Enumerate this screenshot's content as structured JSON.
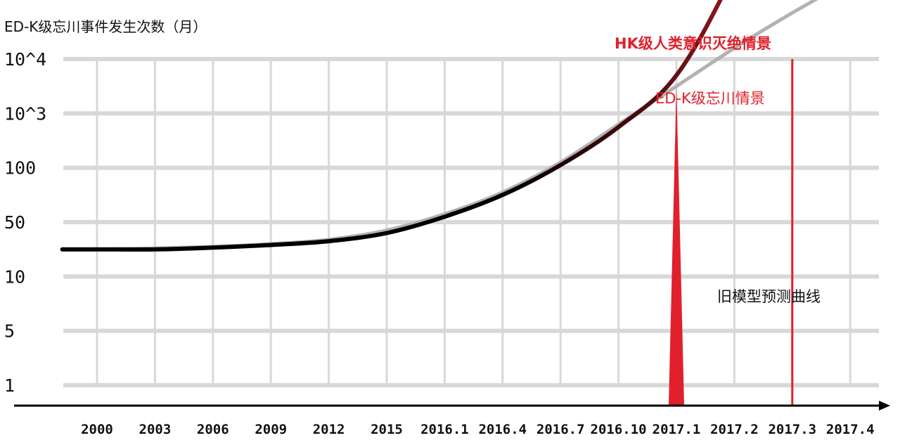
{
  "chart_data": {
    "type": "line",
    "ylabel": "ED-K级忘川事件发生次数（月）",
    "y_ticks": [
      "1",
      "5",
      "10",
      "50",
      "100",
      "10^3",
      "10^4"
    ],
    "y_scale": "log (categorical ticks)",
    "x_ticks": [
      "2000",
      "2003",
      "2006",
      "2009",
      "2012",
      "2015",
      "2016.1",
      "2016.4",
      "2016.7",
      "2016.10",
      "2017.1",
      "2017.2",
      "2017.3",
      "2017.4"
    ],
    "grid": true,
    "series": [
      {
        "name": "旧模型预测曲线",
        "color": "#b2b2b2",
        "points": [
          [
            -0.6,
            2.5
          ],
          [
            0,
            2.5
          ],
          [
            1,
            2.52
          ],
          [
            2,
            2.55
          ],
          [
            3,
            2.6
          ],
          [
            4,
            2.68
          ],
          [
            5,
            2.85
          ],
          [
            6,
            3.15
          ],
          [
            7,
            3.55
          ],
          [
            8,
            4.1
          ],
          [
            9,
            4.8
          ],
          [
            10,
            5.5
          ],
          [
            11,
            6.2
          ],
          [
            12,
            6.85
          ],
          [
            13,
            7.45
          ],
          [
            13.95,
            8.0
          ]
        ]
      },
      {
        "name": "",
        "color_start": "#000000",
        "color_end": "#d4202a",
        "points": [
          [
            -0.6,
            2.5
          ],
          [
            0,
            2.5
          ],
          [
            1,
            2.5
          ],
          [
            2,
            2.53
          ],
          [
            3,
            2.58
          ],
          [
            4,
            2.65
          ],
          [
            5,
            2.8
          ],
          [
            6,
            3.1
          ],
          [
            7,
            3.5
          ],
          [
            8,
            4.05
          ],
          [
            9,
            4.75
          ],
          [
            10,
            5.7
          ],
          [
            11,
            7.6
          ],
          [
            12,
            10.0
          ],
          [
            12.3,
            11.5
          ]
        ]
      }
    ],
    "annotations": [
      {
        "text": "HK级人类意识灭绝情景",
        "color": "#e0202c",
        "bold": true
      },
      {
        "text": "ED-K级忘川情景",
        "color": "#e0202c",
        "bold": false
      },
      {
        "text": "旧模型预测曲线",
        "color": "#111111",
        "bold": false
      }
    ],
    "markers": [
      {
        "type": "vertical-line",
        "x": 12,
        "color": "#e0202c"
      },
      {
        "type": "spike",
        "x": 10,
        "peak_y": 5.5,
        "color": "#e0202c"
      }
    ]
  }
}
